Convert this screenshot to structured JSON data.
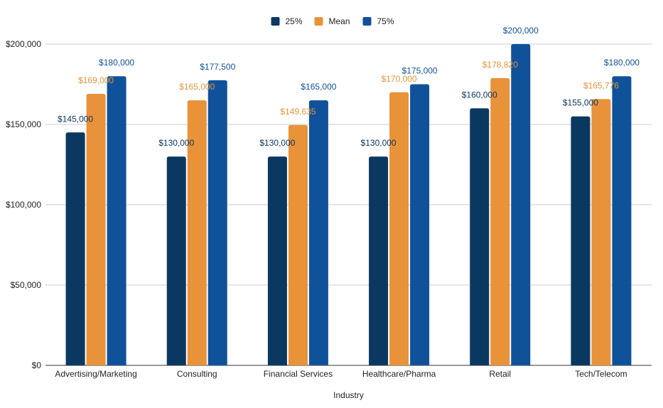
{
  "chart_data": {
    "type": "bar",
    "title": "",
    "xlabel": "Industry",
    "ylabel": "",
    "ylim": [
      0,
      200000
    ],
    "yticks": [
      0,
      50000,
      100000,
      150000,
      200000
    ],
    "ytick_labels": [
      "$0",
      "$50,000",
      "$100,000",
      "$150,000",
      "$200,000"
    ],
    "grid": true,
    "legend_position": "top",
    "categories": [
      "Advertising/Marketing",
      "Consulting",
      "Financial Services",
      "Healthcare/Pharma",
      "Retail",
      "Tech/Telecom"
    ],
    "series": [
      {
        "name": "25%",
        "color": "#0b3861",
        "values": [
          145000,
          130000,
          130000,
          130000,
          160000,
          155000
        ],
        "labels": [
          "$145,000",
          "$130,000",
          "$130,000",
          "$130,000",
          "$160,000",
          "$155,000"
        ]
      },
      {
        "name": "Mean",
        "color": "#e8923a",
        "values": [
          169000,
          165000,
          149635,
          170000,
          178820,
          165776
        ],
        "labels": [
          "$169,000",
          "$165,000",
          "$149,635",
          "$170,000",
          "$178,820",
          "$165,776"
        ]
      },
      {
        "name": "75%",
        "color": "#10529a",
        "values": [
          180000,
          177500,
          165000,
          175000,
          200000,
          180000
        ],
        "labels": [
          "$180,000",
          "$177,500",
          "$165,000",
          "$175,000",
          "$200,000",
          "$180,000"
        ]
      }
    ]
  }
}
